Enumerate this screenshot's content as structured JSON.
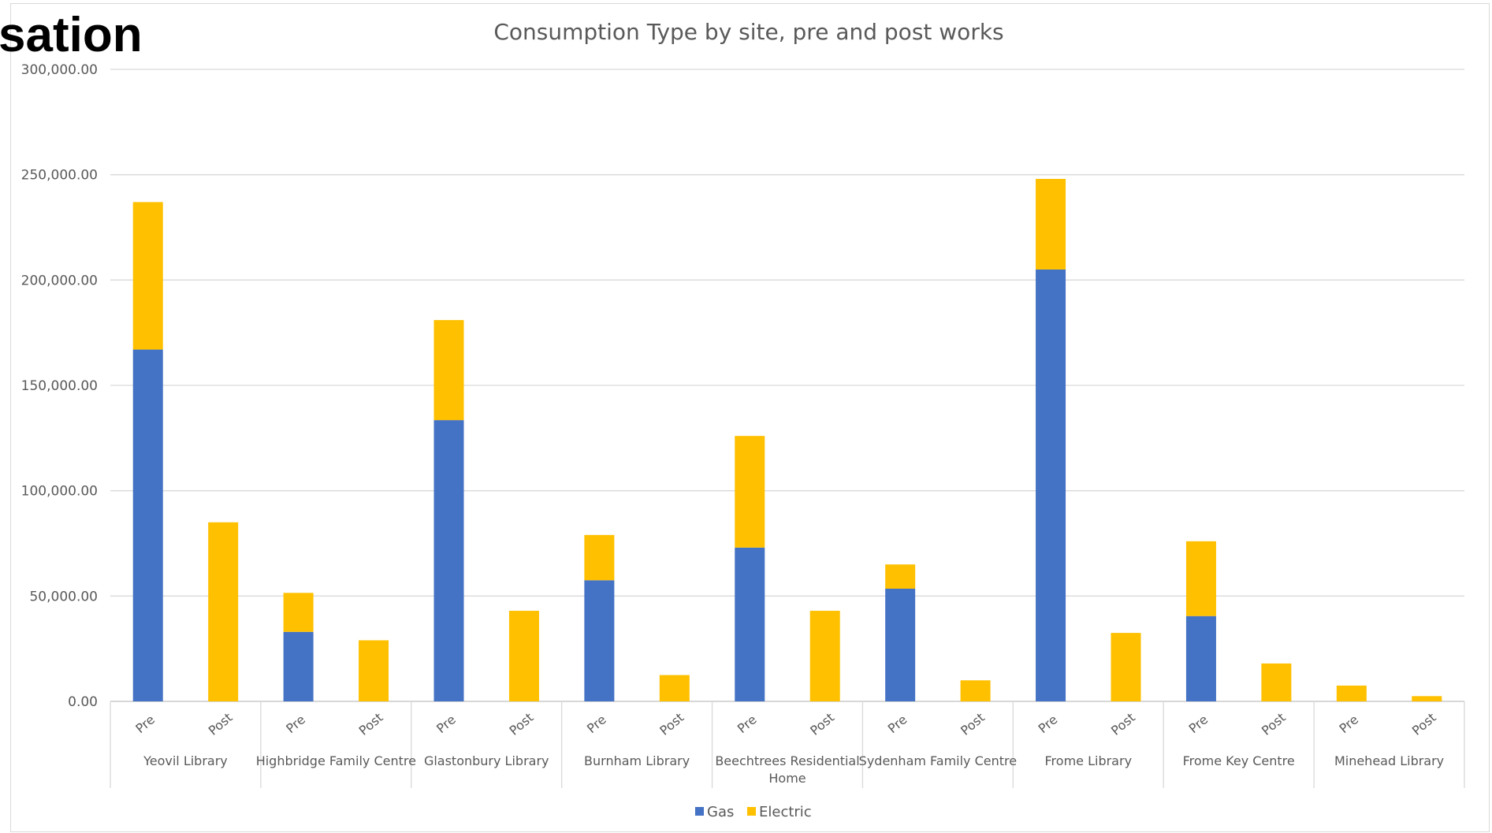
{
  "heading_fragment": "sation",
  "chart_data": {
    "type": "bar",
    "stacked": true,
    "title": "Consumption Type by site, pre and post works",
    "xlabel": "",
    "ylabel": "",
    "ylim": [
      0,
      300000
    ],
    "yticks": [
      "0.00",
      "50,000.00",
      "100,000.00",
      "150,000.00",
      "200,000.00",
      "250,000.00",
      "300,000.00"
    ],
    "grid": true,
    "legend_position": "bottom",
    "categories": [
      "Yeovil Library",
      "Highbridge Family Centre",
      "Glastonbury Library",
      "Burnham Library",
      "Beechtrees Residential Home",
      "Sydenham Family Centre",
      "Frome Library",
      "Frome Key Centre",
      "Minehead Library"
    ],
    "category_lines": [
      [
        "Yeovil Library"
      ],
      [
        "Highbridge Family Centre"
      ],
      [
        "Glastonbury Library"
      ],
      [
        "Burnham Library"
      ],
      [
        "Beechtrees Residential",
        "Home"
      ],
      [
        "Sydenham Family Centre"
      ],
      [
        "Frome Library"
      ],
      [
        "Frome Key Centre"
      ],
      [
        "Minehead Library"
      ]
    ],
    "subcategories": [
      "Pre",
      "Post"
    ],
    "series": [
      {
        "name": "Gas",
        "color": "#4472c4",
        "values": [
          [
            167000,
            0
          ],
          [
            33000,
            0
          ],
          [
            133500,
            0
          ],
          [
            57500,
            0
          ],
          [
            73000,
            0
          ],
          [
            53500,
            0
          ],
          [
            205000,
            0
          ],
          [
            40500,
            0
          ],
          [
            0,
            0
          ]
        ]
      },
      {
        "name": "Electric",
        "color": "#ffc000",
        "values": [
          [
            70000,
            85000
          ],
          [
            18500,
            29000
          ],
          [
            47500,
            43000
          ],
          [
            21500,
            12500
          ],
          [
            53000,
            43000
          ],
          [
            11500,
            10000
          ],
          [
            43000,
            32500
          ],
          [
            35500,
            18000
          ],
          [
            7500,
            2500
          ]
        ]
      }
    ]
  }
}
